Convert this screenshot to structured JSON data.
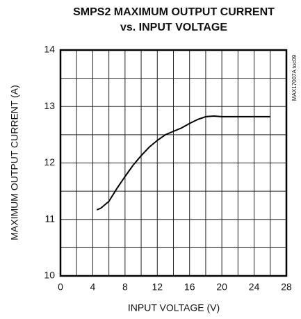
{
  "chart_data": {
    "type": "line",
    "title": [
      "SMPS2 MAXIMUM OUTPUT CURRENT",
      "vs. INPUT VOLTAGE"
    ],
    "xlabel": "INPUT VOLTAGE (V)",
    "ylabel": "MAXIMUM OUTPUT CURRENT (A)",
    "annotation": "MAX17007A toc09",
    "x": [
      4.5,
      5,
      6,
      7,
      8,
      9,
      10,
      11,
      12,
      13,
      14,
      15,
      16,
      17,
      18,
      19,
      20,
      22,
      24,
      26
    ],
    "series": [
      {
        "name": "SMPS2",
        "color": "#000000",
        "values": [
          11.17,
          11.2,
          11.32,
          11.55,
          11.76,
          11.96,
          12.13,
          12.28,
          12.4,
          12.5,
          12.56,
          12.62,
          12.7,
          12.77,
          12.82,
          12.83,
          12.82,
          12.82,
          12.82,
          12.82
        ]
      }
    ],
    "xlim": [
      0,
      28
    ],
    "xticks": [
      0,
      4,
      8,
      12,
      16,
      20,
      24,
      28
    ],
    "xticks_minor": [
      2,
      6,
      10,
      14,
      18,
      22,
      26
    ],
    "ylim": [
      10,
      14
    ],
    "yticks": [
      10,
      11,
      12,
      13,
      14
    ],
    "yticks_minor": [
      10.5,
      11.5,
      12.5,
      13.5
    ],
    "grid": true
  }
}
